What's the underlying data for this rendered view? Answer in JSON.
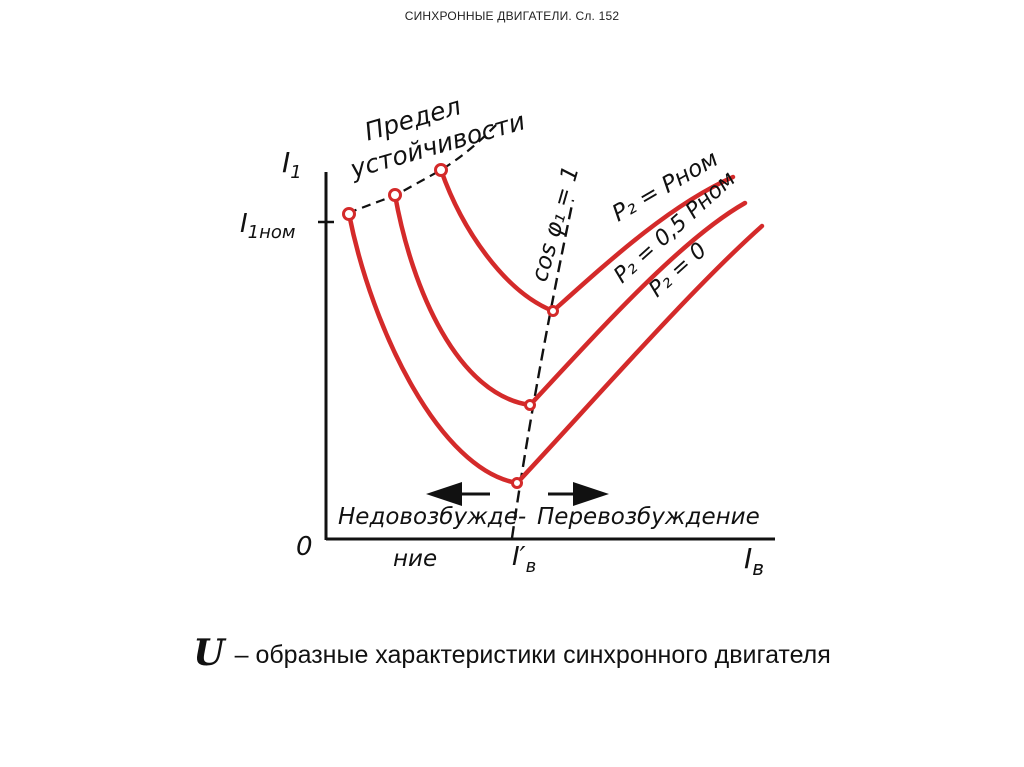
{
  "slide": {
    "header": "СИНХРОННЫЕ ДВИГАТЕЛИ. Сл. 152",
    "caption_symbol": "U",
    "caption_text": "– образные характеристики синхронного двигателя"
  },
  "diagram": {
    "y_axis_label": "I",
    "y_axis_label_sub": "1",
    "y_tick_label": "I",
    "y_tick_label_sub": "1ном",
    "origin_label": "0",
    "x_axis_label": "I",
    "x_axis_label_sub": "в",
    "x_tick_label": "I′",
    "x_tick_label_sub": "в",
    "stability_limit_label_line1": "Предел",
    "stability_limit_label_line2": "устойчивости",
    "unity_pf_label": "cos φ₁ = 1",
    "under_excitation_label": "Недовозбужде-",
    "under_excitation_label_cont": "ние",
    "over_excitation_label": "Перевозбуждение",
    "curve_labels": {
      "p_nom": "P₂ = Pном",
      "p_half": "P₂ = 0,5 Pном",
      "p_zero": "P₂ = 0"
    },
    "colors": {
      "curve": "#d42a2a",
      "ink": "#111111"
    }
  }
}
